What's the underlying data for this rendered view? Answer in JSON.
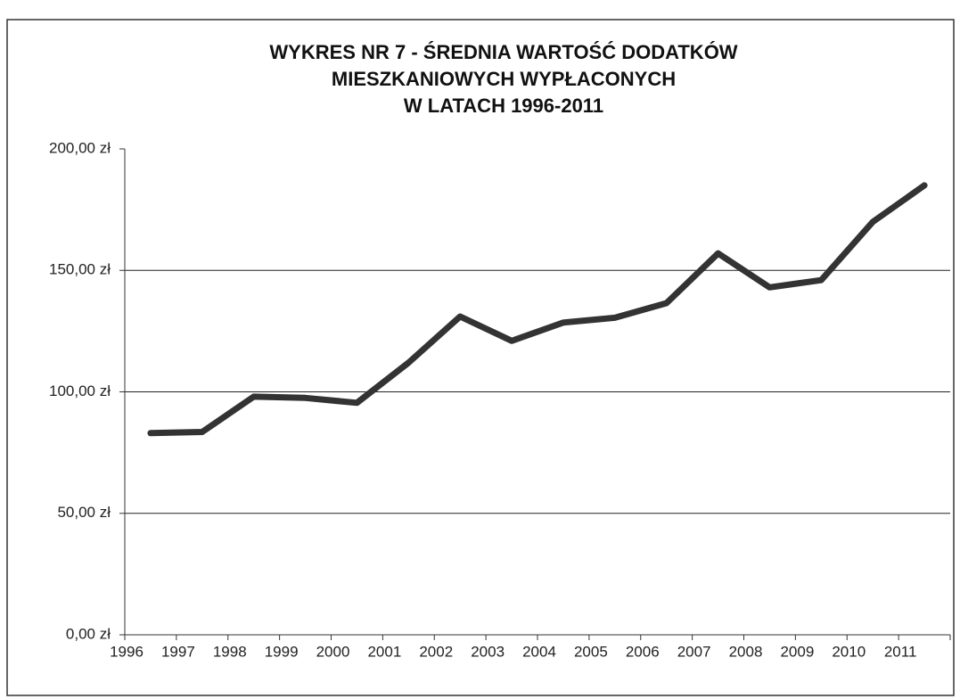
{
  "chart_data": {
    "type": "line",
    "title": [
      "WYKRES NR 7 - ŚREDNIA WARTOŚĆ DODATKÓW",
      "MIESZKANIOWYCH  WYPŁACONYCH",
      "W LATACH 1996-2011"
    ],
    "categories": [
      "1996",
      "1997",
      "1998",
      "1999",
      "2000",
      "2001",
      "2002",
      "2003",
      "2004",
      "2005",
      "2006",
      "2007",
      "2008",
      "2009",
      "2010",
      "2011"
    ],
    "values": [
      83,
      83.5,
      98,
      97.5,
      95.5,
      112,
      131,
      121,
      128.5,
      130.5,
      136.5,
      157,
      143,
      146,
      170,
      185
    ],
    "color": "#333333",
    "ylim": [
      0,
      200
    ],
    "yticks": [
      {
        "value": 0,
        "label": "0,00 zł"
      },
      {
        "value": 50,
        "label": "50,00 zł"
      },
      {
        "value": 100,
        "label": "100,00 zł"
      },
      {
        "value": 150,
        "label": "150,00 zł"
      },
      {
        "value": 200,
        "label": "200,00 zł"
      }
    ],
    "grid": true
  }
}
